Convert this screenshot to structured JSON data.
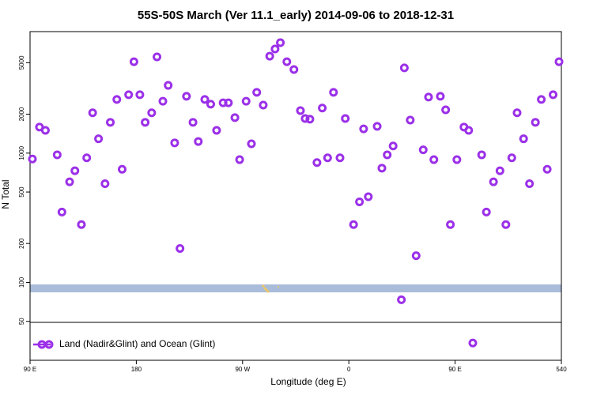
{
  "chart_data": {
    "type": "scatter",
    "title": "55S-50S March (Ver 11.1_early)   2014-09-06 to 2018-12-31",
    "x_label": "Longitude (deg E)",
    "y_label": "N Total",
    "xlim": [
      90,
      540
    ],
    "ylim": [
      25,
      8700
    ],
    "ylog": true,
    "xticks": [
      {
        "value": 90,
        "label": "90 E"
      },
      180,
      {
        "value": 270,
        "label": "90 W"
      },
      {
        "value": 360,
        "label": "0"
      },
      {
        "value": 450,
        "label": "90 E"
      },
      540
    ],
    "yticks": [
      50,
      100,
      200,
      500,
      1000,
      2000,
      5000
    ],
    "legend": "lower left",
    "series": [
      {
        "name": "Land (Nadir&Glint) and Ocean (Glint)",
        "color": "#9b30e8",
        "x": [
          92,
          98,
          103,
          113,
          117,
          123.5,
          128,
          133.5,
          138,
          143,
          148,
          153.5,
          158,
          163.5,
          168,
          173.5,
          178,
          183,
          187.5,
          193,
          197.5,
          202.5,
          207,
          212.5,
          217,
          222.5,
          228,
          232.5,
          238,
          243,
          248,
          253.5,
          258,
          263.5,
          267.5,
          273,
          277.5,
          282,
          287.5,
          293,
          297.5,
          302,
          307.5,
          313.5,
          319,
          323,
          327,
          333,
          337.5,
          342,
          347,
          352.5,
          357,
          364,
          369,
          372.5,
          376.5,
          384,
          388,
          392.5,
          397.5,
          404.5,
          407,
          412,
          417,
          423,
          427.5,
          432,
          437.5,
          442,
          446,
          451.5,
          457.5,
          461.5,
          465,
          472.5,
          476.5,
          482.5,
          488,
          493,
          498,
          502.5,
          508,
          513,
          518,
          523,
          528,
          533,
          538
        ],
        "values": [
          900,
          1590,
          1500,
          970,
          350,
          600,
          730,
          280,
          920,
          2050,
          1290,
          580,
          1730,
          2600,
          750,
          2830,
          5090,
          2830,
          1730,
          2050,
          5550,
          2520,
          3340,
          1200,
          183,
          2750,
          1730,
          1230,
          2600,
          2390,
          1500,
          2450,
          2450,
          1880,
          890,
          2520,
          1180,
          2950,
          2350,
          5620,
          6380,
          7140,
          5090,
          4430,
          2130,
          1850,
          1830,
          845,
          2230,
          920,
          2950,
          920,
          1850,
          280,
          420,
          1540,
          460,
          1610,
          765,
          970,
          1135,
          73.5,
          4560,
          1800,
          161,
          1060,
          2710,
          890,
          2750,
          2160,
          280,
          890,
          1590,
          1500,
          34,
          970,
          350,
          600,
          730,
          280,
          920,
          2050,
          1290,
          580,
          1730,
          2600,
          750,
          2830,
          5090
        ]
      }
    ]
  }
}
